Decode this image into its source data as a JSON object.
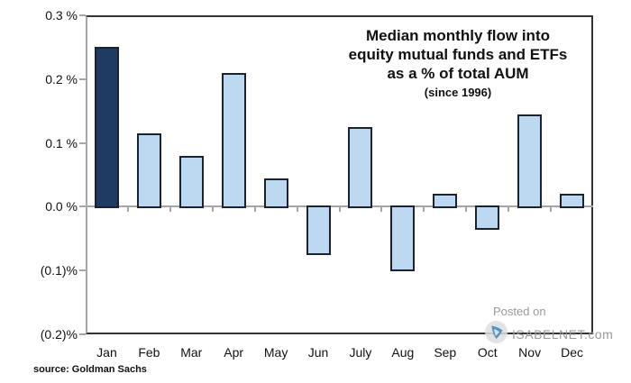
{
  "title": {
    "line1": "Median monthly flow into",
    "line2": "equity mutual funds and ETFs",
    "line3": "as a % of total AUM",
    "line4": "(since 1996)"
  },
  "watermark": {
    "posted_on": "Posted on",
    "site": "ISABELNET.com",
    "logo_icon": "isabelnet-swirl-logo"
  },
  "source_note": "source: Goldman Sachs",
  "y_axis": {
    "tick_labels": [
      "0.3 %",
      "0.2 %",
      "0.1 %",
      "0.0 %",
      "(0.1)%",
      "(0.2)%"
    ],
    "tick_values": [
      0.3,
      0.2,
      0.1,
      0.0,
      -0.1,
      -0.2
    ]
  },
  "chart_data": {
    "type": "bar",
    "title": "Median monthly flow into equity mutual funds and ETFs as a % of total AUM (since 1996)",
    "categories": [
      "Jan",
      "Feb",
      "Mar",
      "Apr",
      "May",
      "Jun",
      "July",
      "Aug",
      "Sep",
      "Oct",
      "Nov",
      "Dec"
    ],
    "values": [
      0.25,
      0.115,
      0.08,
      0.21,
      0.045,
      -0.075,
      0.125,
      -0.1,
      0.02,
      -0.035,
      0.145,
      0.02
    ],
    "unit": "% of total AUM",
    "ylim": [
      -0.2,
      0.3
    ],
    "grid": false,
    "legend": "none",
    "highlight_category": "Jan",
    "colors": {
      "default_fill": "#BDD9F2",
      "highlight_fill": "#1F3A63",
      "bar_border": "#1B2230",
      "axis_gray": "#A6A6A6",
      "box_border": "#333333",
      "watermark_gray": "#9A9A9A",
      "logo_blue": "#4A86B8"
    }
  }
}
